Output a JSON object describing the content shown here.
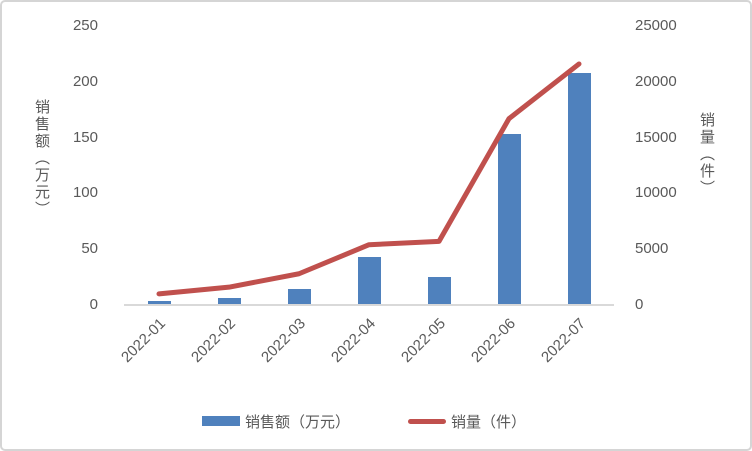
{
  "chart_data": {
    "type": "bar",
    "subtype": "combo-bar-line-dual-axis",
    "title": "",
    "categories": [
      "2022-01",
      "2022-02",
      "2022-03",
      "2022-04",
      "2022-05",
      "2022-06",
      "2022-07"
    ],
    "series": [
      {
        "name": "销售额（万元）",
        "type": "bar",
        "axis": "left",
        "color": "#4f81bd",
        "values": [
          4,
          6,
          14,
          43,
          25,
          153,
          208
        ]
      },
      {
        "name": "销量（件）",
        "type": "line",
        "axis": "right",
        "color": "#c0504d",
        "values": [
          1000,
          1600,
          2800,
          5400,
          5700,
          16700,
          21600
        ]
      }
    ],
    "left_axis": {
      "title": "销售额（万元）",
      "ticks": [
        0,
        50,
        100,
        150,
        200,
        250
      ],
      "min": 0,
      "max": 250
    },
    "right_axis": {
      "title": "销量（件）",
      "ticks": [
        0,
        5000,
        10000,
        15000,
        20000,
        25000
      ],
      "min": 0,
      "max": 25000
    },
    "grid": false,
    "legend_position": "bottom"
  },
  "legend": {
    "bar_label": "销售额（万元）",
    "line_label": "销量（件）"
  },
  "colors": {
    "bar_fill": "#4f81bd",
    "line_stroke": "#c0504d",
    "axis_line": "#d9d9d9",
    "tick_text": "#595959",
    "frame_border": "#d5d5d5",
    "background": "#ffffff"
  }
}
